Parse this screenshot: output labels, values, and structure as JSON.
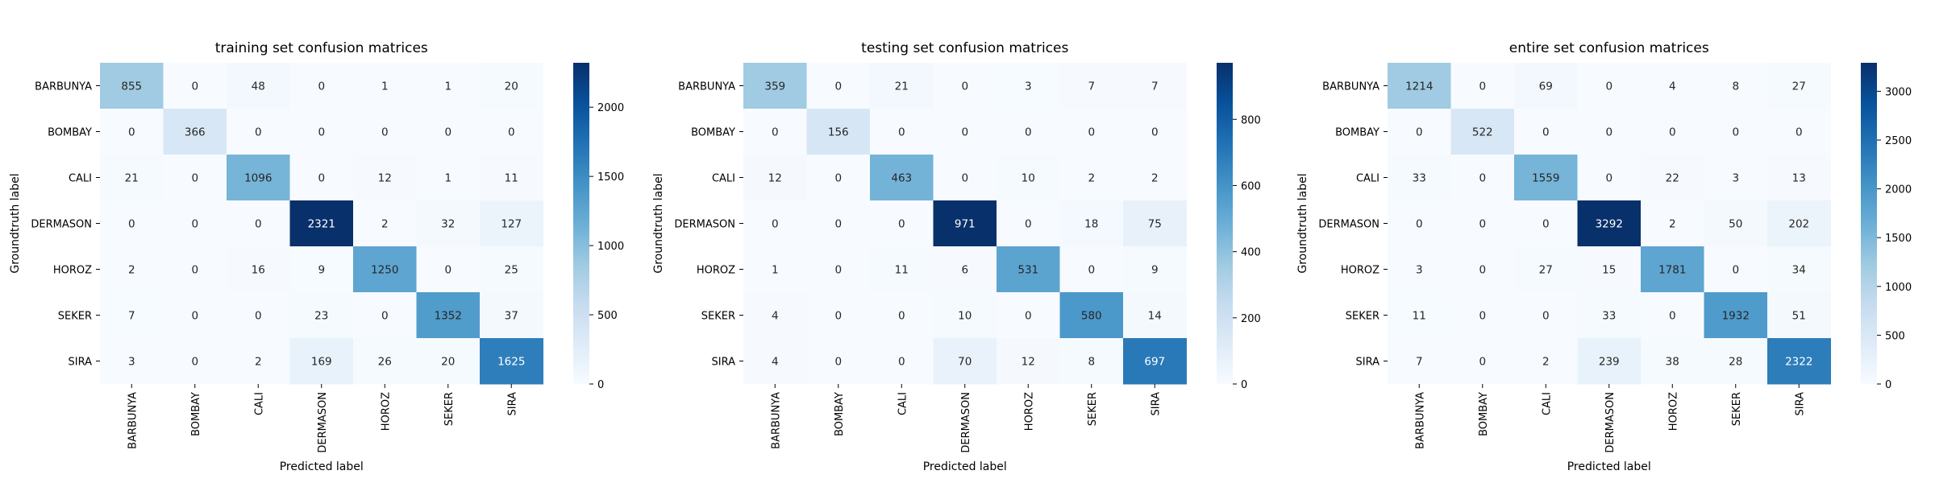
{
  "chart_data": [
    {
      "type": "heatmap",
      "title": "training set confusion matrices",
      "xlabel": "Predicted label",
      "ylabel": "Groundtruth label",
      "x_categories": [
        "BARBUNYA",
        "BOMBAY",
        "CALI",
        "DERMASON",
        "HOROZ",
        "SEKER",
        "SIRA"
      ],
      "y_categories": [
        "BARBUNYA",
        "BOMBAY",
        "CALI",
        "DERMASON",
        "HOROZ",
        "SEKER",
        "SIRA"
      ],
      "values": [
        [
          855,
          0,
          48,
          0,
          1,
          1,
          20
        ],
        [
          0,
          366,
          0,
          0,
          0,
          0,
          0
        ],
        [
          21,
          0,
          1096,
          0,
          12,
          1,
          11
        ],
        [
          0,
          0,
          0,
          2321,
          2,
          32,
          127
        ],
        [
          2,
          0,
          16,
          9,
          1250,
          0,
          25
        ],
        [
          7,
          0,
          0,
          23,
          0,
          1352,
          37
        ],
        [
          3,
          0,
          2,
          169,
          26,
          20,
          1625
        ]
      ],
      "colorbar": {
        "range": [
          0,
          2321
        ],
        "ticks": [
          0,
          500,
          1000,
          1500,
          2000
        ]
      }
    },
    {
      "type": "heatmap",
      "title": "testing set confusion matrices",
      "xlabel": "Predicted label",
      "ylabel": "Groundtruth label",
      "x_categories": [
        "BARBUNYA",
        "BOMBAY",
        "CALI",
        "DERMASON",
        "HOROZ",
        "SEKER",
        "SIRA"
      ],
      "y_categories": [
        "BARBUNYA",
        "BOMBAY",
        "CALI",
        "DERMASON",
        "HOROZ",
        "SEKER",
        "SIRA"
      ],
      "values": [
        [
          359,
          0,
          21,
          0,
          3,
          7,
          7
        ],
        [
          0,
          156,
          0,
          0,
          0,
          0,
          0
        ],
        [
          12,
          0,
          463,
          0,
          10,
          2,
          2
        ],
        [
          0,
          0,
          0,
          971,
          0,
          18,
          75
        ],
        [
          1,
          0,
          11,
          6,
          531,
          0,
          9
        ],
        [
          4,
          0,
          0,
          10,
          0,
          580,
          14
        ],
        [
          4,
          0,
          0,
          70,
          12,
          8,
          697
        ]
      ],
      "colorbar": {
        "range": [
          0,
          971
        ],
        "ticks": [
          0,
          200,
          400,
          600,
          800
        ]
      }
    },
    {
      "type": "heatmap",
      "title": "entire set confusion matrices",
      "xlabel": "Predicted label",
      "ylabel": "Groundtruth label",
      "x_categories": [
        "BARBUNYA",
        "BOMBAY",
        "CALI",
        "DERMASON",
        "HOROZ",
        "SEKER",
        "SIRA"
      ],
      "y_categories": [
        "BARBUNYA",
        "BOMBAY",
        "CALI",
        "DERMASON",
        "HOROZ",
        "SEKER",
        "SIRA"
      ],
      "values": [
        [
          1214,
          0,
          69,
          0,
          4,
          8,
          27
        ],
        [
          0,
          522,
          0,
          0,
          0,
          0,
          0
        ],
        [
          33,
          0,
          1559,
          0,
          22,
          3,
          13
        ],
        [
          0,
          0,
          0,
          3292,
          2,
          50,
          202
        ],
        [
          3,
          0,
          27,
          15,
          1781,
          0,
          34
        ],
        [
          11,
          0,
          0,
          33,
          0,
          1932,
          51
        ],
        [
          7,
          0,
          2,
          239,
          38,
          28,
          2322
        ]
      ],
      "colorbar": {
        "range": [
          0,
          3292
        ],
        "ticks": [
          0,
          500,
          1000,
          1500,
          2000,
          2500,
          3000
        ]
      }
    }
  ]
}
